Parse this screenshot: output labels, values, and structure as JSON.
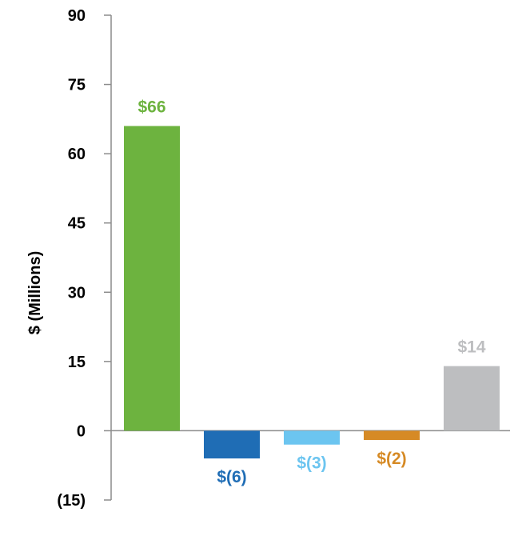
{
  "chart_data": {
    "type": "bar",
    "ylabel": "$ (Millions)",
    "ylim": [
      -15,
      90
    ],
    "yticks": [
      90,
      75,
      60,
      45,
      30,
      15,
      0,
      -15
    ],
    "ytick_labels": [
      "90",
      "75",
      "60",
      "45",
      "30",
      "15",
      "0",
      "(15)"
    ],
    "values": [
      66,
      -6,
      -3,
      -2,
      14
    ],
    "data_labels": [
      "$66",
      "$(6)",
      "$(3)",
      "$(2)",
      "$14"
    ],
    "colors": [
      "#6DB33F",
      "#1F6DB5",
      "#6CC5F0",
      "#D68A25",
      "#BDBEC0"
    ],
    "grid": false
  },
  "axis_color": "#8C8C8C"
}
